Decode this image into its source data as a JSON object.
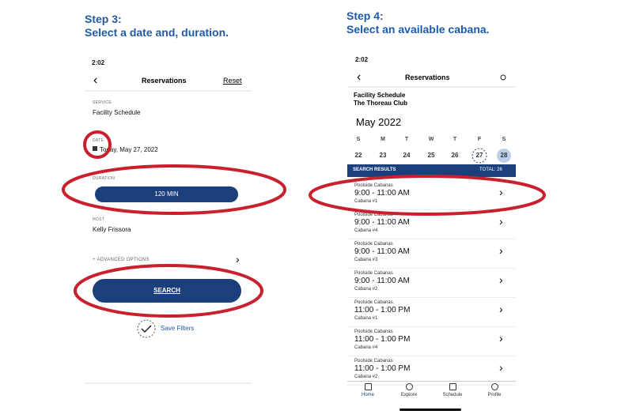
{
  "left": {
    "step": "Step 3:",
    "instruction": "Select a date and, duration.",
    "status_time": "2:02",
    "nav_title": "Reservations",
    "nav_action": "Reset",
    "fields": [
      {
        "label": "SERVICE",
        "value": "Facility Schedule"
      },
      {
        "label": "DATE",
        "value": "Today, May 27, 2022"
      },
      {
        "label": "DURATION",
        "value": "120 MIN"
      },
      {
        "label": "HOST",
        "value": "Kelly Frissora"
      }
    ],
    "advanced": "+ ADVANCED OPTIONS",
    "search_button": "SEARCH",
    "save_filters": "Save Filters"
  },
  "right": {
    "step": "Step 4:",
    "instruction": "Select an available cabana.",
    "status_time": "2:02",
    "nav_title": "Reservations",
    "facility": "Facility Schedule",
    "club": "The Thoreau Club",
    "month": "May 2022",
    "weekdays": [
      "S",
      "M",
      "T",
      "W",
      "T",
      "F",
      "S"
    ],
    "dates": [
      "22",
      "23",
      "24",
      "25",
      "26",
      "27",
      "28"
    ],
    "results_header": "SEARCH RESULTS",
    "results_total": "TOTAL: 26",
    "results": [
      {
        "name": "Poolside Cabanas",
        "time": "9:00 - 11:00 AM",
        "cabana": "Cabana #1"
      },
      {
        "name": "Poolside Cabanas",
        "time": "9:00 - 11:00 AM",
        "cabana": "Cabana #4"
      },
      {
        "name": "Poolside Cabanas",
        "time": "9:00 - 11:00 AM",
        "cabana": "Cabana #3"
      },
      {
        "name": "Poolside Cabanas",
        "time": "9:00 - 11:00 AM",
        "cabana": "Cabana #2"
      },
      {
        "name": "Poolside Cabanas",
        "time": "11:00 - 1:00 PM",
        "cabana": "Cabana #1"
      },
      {
        "name": "Poolside Cabanas",
        "time": "11:00 - 1:00 PM",
        "cabana": "Cabana #4"
      },
      {
        "name": "Poolside Cabanas",
        "time": "11:00 - 1:00 PM",
        "cabana": "Cabana #2"
      }
    ],
    "tabs": [
      "Home",
      "Explore",
      "Schedule",
      "Profile"
    ]
  }
}
